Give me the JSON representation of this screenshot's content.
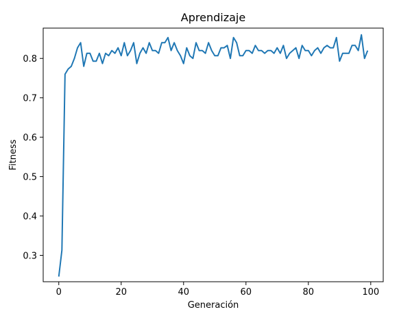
{
  "chart_data": {
    "type": "line",
    "title": "Aprendizaje",
    "xlabel": "Generación",
    "ylabel": "Fitness",
    "xlim": [
      -5,
      104
    ],
    "ylim": [
      0.233,
      0.877
    ],
    "xticks": [
      0,
      20,
      40,
      60,
      80,
      100
    ],
    "yticks": [
      0.3,
      0.4,
      0.5,
      0.6,
      0.7,
      0.8
    ],
    "xtick_labels": [
      "0",
      "20",
      "40",
      "60",
      "80",
      "100"
    ],
    "ytick_labels": [
      "0.3",
      "0.4",
      "0.5",
      "0.6",
      "0.7",
      "0.8"
    ],
    "grid": false,
    "legend": false,
    "series": [
      {
        "color": "#1f77b4",
        "x": [
          0,
          1,
          2,
          3,
          4,
          5,
          6,
          7,
          8,
          9,
          10,
          11,
          12,
          13,
          14,
          15,
          16,
          17,
          18,
          19,
          20,
          21,
          22,
          23,
          24,
          25,
          26,
          27,
          28,
          29,
          30,
          31,
          32,
          33,
          34,
          35,
          36,
          37,
          38,
          39,
          40,
          41,
          42,
          43,
          44,
          45,
          46,
          47,
          48,
          49,
          50,
          51,
          52,
          53,
          54,
          55,
          56,
          57,
          58,
          59,
          60,
          61,
          62,
          63,
          64,
          65,
          66,
          67,
          68,
          69,
          70,
          71,
          72,
          73,
          74,
          75,
          76,
          77,
          78,
          79,
          80,
          81,
          82,
          83,
          84,
          85,
          86,
          87,
          88,
          89,
          90,
          91,
          92,
          93,
          94,
          95,
          96,
          97,
          98,
          99
        ],
        "values": [
          0.246,
          0.313,
          0.76,
          0.773,
          0.78,
          0.8,
          0.827,
          0.84,
          0.78,
          0.813,
          0.813,
          0.793,
          0.793,
          0.813,
          0.787,
          0.813,
          0.807,
          0.82,
          0.813,
          0.827,
          0.807,
          0.84,
          0.807,
          0.82,
          0.84,
          0.787,
          0.813,
          0.827,
          0.813,
          0.84,
          0.82,
          0.82,
          0.813,
          0.84,
          0.84,
          0.853,
          0.82,
          0.84,
          0.82,
          0.807,
          0.787,
          0.827,
          0.807,
          0.8,
          0.84,
          0.82,
          0.82,
          0.813,
          0.84,
          0.82,
          0.807,
          0.807,
          0.827,
          0.827,
          0.833,
          0.8,
          0.853,
          0.84,
          0.807,
          0.807,
          0.82,
          0.82,
          0.813,
          0.833,
          0.82,
          0.82,
          0.813,
          0.82,
          0.82,
          0.813,
          0.827,
          0.813,
          0.833,
          0.8,
          0.813,
          0.82,
          0.827,
          0.8,
          0.833,
          0.82,
          0.82,
          0.807,
          0.82,
          0.827,
          0.813,
          0.827,
          0.833,
          0.827,
          0.827,
          0.853,
          0.793,
          0.813,
          0.813,
          0.813,
          0.833,
          0.833,
          0.82,
          0.86,
          0.8,
          0.82
        ]
      }
    ]
  }
}
